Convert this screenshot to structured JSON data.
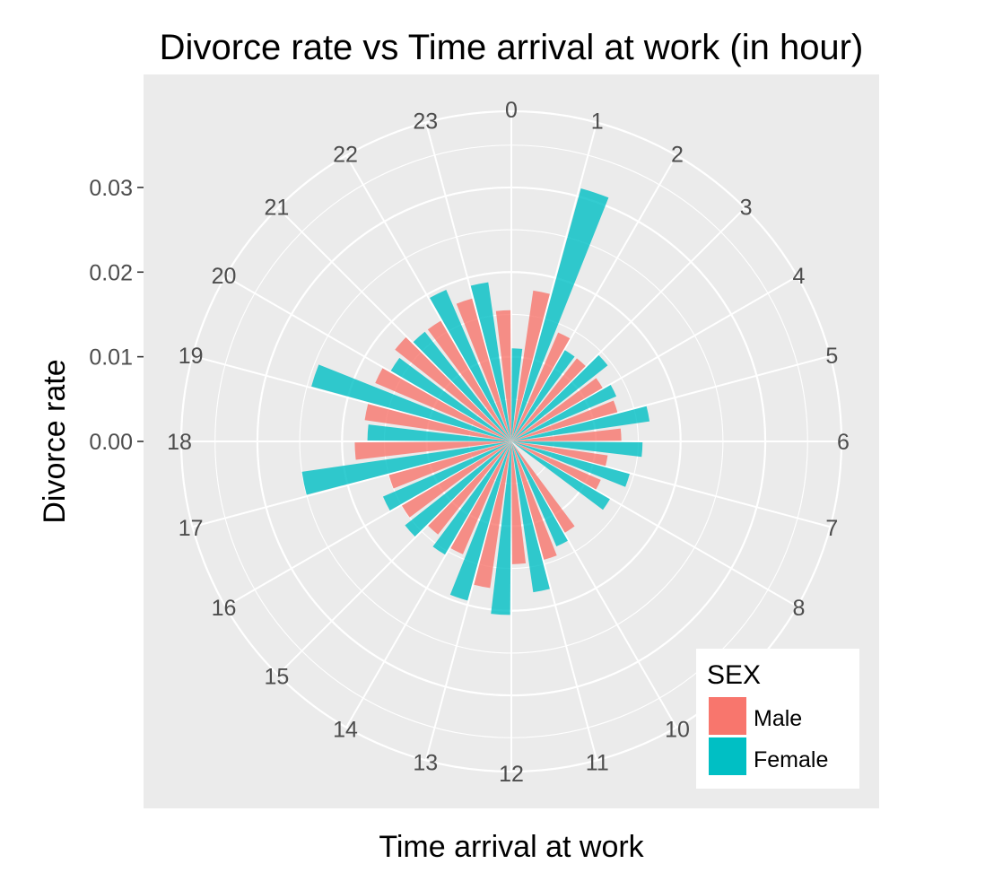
{
  "chart_data": {
    "type": "bar",
    "subtype": "polar",
    "title": "Divorce rate vs Time arrival at work (in hour)",
    "xlabel": "Time arrival at work",
    "ylabel": "Divorce rate",
    "y_ticks": [
      "0.00",
      "0.01",
      "0.02",
      "0.03"
    ],
    "ylim": [
      0,
      0.039
    ],
    "grid": true,
    "legend_position": "bottom-right",
    "legend": {
      "title": "SEX",
      "entries": [
        "Male",
        "Female"
      ]
    },
    "categories": [
      "0",
      "1",
      "2",
      "3",
      "4",
      "5",
      "6",
      "7",
      "8",
      "10",
      "11",
      "12",
      "13",
      "14",
      "15",
      "16",
      "17",
      "18",
      "19",
      "20",
      "21",
      "22",
      "23"
    ],
    "series": [
      {
        "name": "Male",
        "color": "#F8766D",
        "values": [
          0.0155,
          0.018,
          0.014,
          0.0125,
          0.0125,
          0.013,
          0.013,
          0.0115,
          0.0115,
          0.0125,
          0.0145,
          0.0145,
          0.0175,
          0.0145,
          0.014,
          0.015,
          0.015,
          0.0185,
          0.0175,
          0.0175,
          0.0175,
          0.0165,
          0.0175
        ]
      },
      {
        "name": "Female",
        "color": "#00BFC4",
        "values": [
          0.011,
          0.031,
          0.0125,
          0.0145,
          0.0135,
          0.0165,
          0.0155,
          0.0145,
          0.0135,
          0.0135,
          0.018,
          0.0205,
          0.0195,
          0.0155,
          0.016,
          0.0165,
          0.025,
          0.017,
          0.0245,
          0.0165,
          0.0165,
          0.0195,
          0.019
        ]
      }
    ]
  }
}
